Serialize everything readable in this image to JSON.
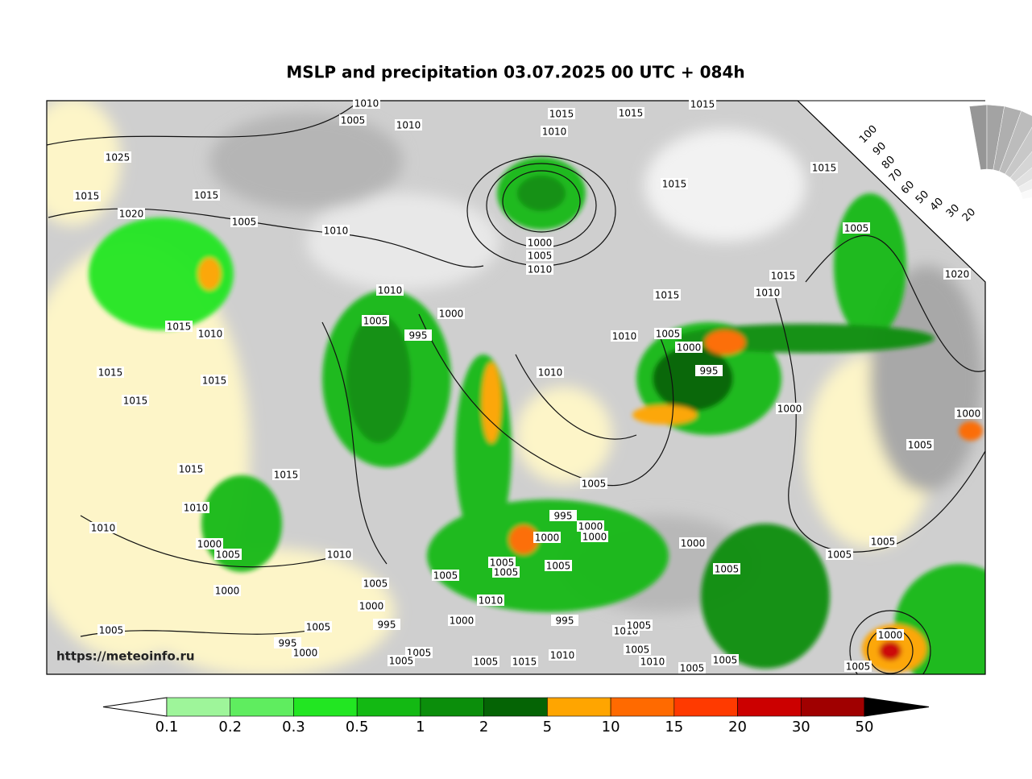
{
  "title": "MSLP and precipitation 03.07.2025 00 UTC + 084h",
  "url": "https://meteoinfo.ru",
  "colorbar": {
    "labels": [
      0.1,
      0.2,
      0.3,
      0.5,
      1,
      2,
      5,
      10,
      15,
      20,
      30,
      50
    ],
    "colors": [
      "#9ef59a",
      "#5fed5f",
      "#22e622",
      "#13b913",
      "#0b8e0b",
      "#056405",
      "#ffa500",
      "#ff6a00",
      "#ff3a00",
      "#cc0000",
      "#a00000"
    ],
    "under_color": "#ffffff",
    "over_color": "#000000"
  },
  "cloud_scale": {
    "labels": [
      100,
      90,
      80,
      70,
      60,
      50,
      40,
      30,
      20
    ]
  },
  "isobar_labels": [
    1010,
    1005,
    1010,
    1015,
    1010,
    1015,
    1015,
    1025,
    1015,
    1015,
    1020,
    1005,
    1010,
    1015,
    1015,
    1005,
    1000,
    1005,
    1010,
    1015,
    1010,
    1020,
    1010,
    1015,
    1000,
    1005,
    995,
    1015,
    1010,
    1010,
    1005,
    1000,
    995,
    1010,
    1015,
    1015,
    1015,
    1000,
    1000,
    1005,
    1015,
    1015,
    1005,
    1010,
    995,
    1000,
    1000,
    1000,
    1010,
    1000,
    1005,
    1000,
    1010,
    1005,
    1005,
    1005,
    1005,
    1005,
    1005,
    1005,
    1005,
    1000,
    1010,
    1000,
    995,
    1000,
    995,
    1005,
    1010,
    1005,
    1005,
    995,
    1000,
    1005,
    1005,
    1000,
    1010,
    1015,
    1005,
    1010,
    1005,
    1005,
    1005,
    1005
  ]
}
